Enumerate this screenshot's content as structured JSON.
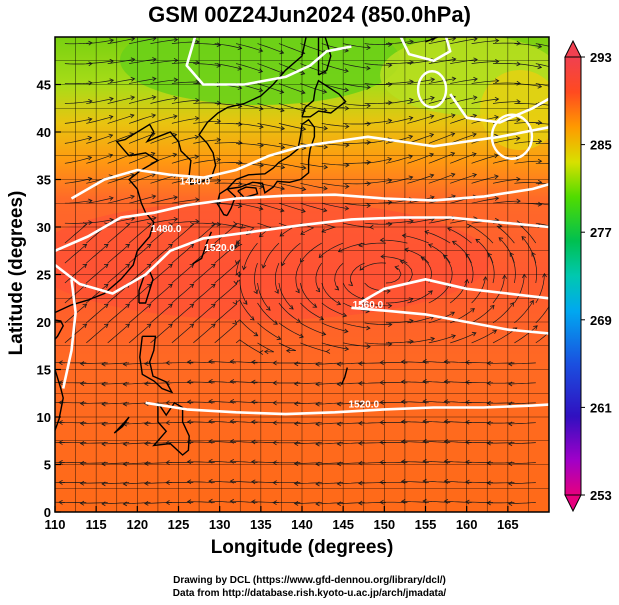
{
  "title": "GSM 00Z24Jun2024 (850.0hPa)",
  "x_axis": {
    "label": "Longitude (degrees)",
    "range": [
      110,
      170
    ],
    "ticks": [
      "110",
      "115",
      "120",
      "125",
      "130",
      "135",
      "140",
      "145",
      "150",
      "155",
      "160",
      "165"
    ]
  },
  "y_axis": {
    "label": "Latitude  (degrees)",
    "range": [
      0,
      50
    ],
    "ticks": [
      "0",
      "5",
      "10",
      "15",
      "20",
      "25",
      "30",
      "35",
      "40",
      "45"
    ]
  },
  "colorbar": {
    "range": [
      253,
      293
    ],
    "tick_labels": [
      "293",
      "285",
      "277",
      "269",
      "261",
      "253"
    ],
    "colors": [
      "#e6007e",
      "#6a00b8",
      "#1a1ab8",
      "#0090ff",
      "#00c8c8",
      "#00c060",
      "#50dc00",
      "#d8e000",
      "#ff9a00",
      "#ff4020",
      "#f04050"
    ]
  },
  "contour_labels": [
    {
      "text": "1440.0",
      "lon": 127.0,
      "lat": 34.5
    },
    {
      "text": "1480.0",
      "lon": 123.5,
      "lat": 29.5
    },
    {
      "text": "1520.0",
      "lon": 130.0,
      "lat": 27.5
    },
    {
      "text": "1560.0",
      "lon": 148.0,
      "lat": 21.5
    },
    {
      "text": "1520.0",
      "lon": 147.5,
      "lat": 11.0
    }
  ],
  "credits": {
    "line1": "Drawing by DCL (https://www.gfd-dennou.org/library/dcl/)",
    "line2": "Data from http://database.rish.kyoto-u.ac.jp/arch/jmadata/"
  }
}
